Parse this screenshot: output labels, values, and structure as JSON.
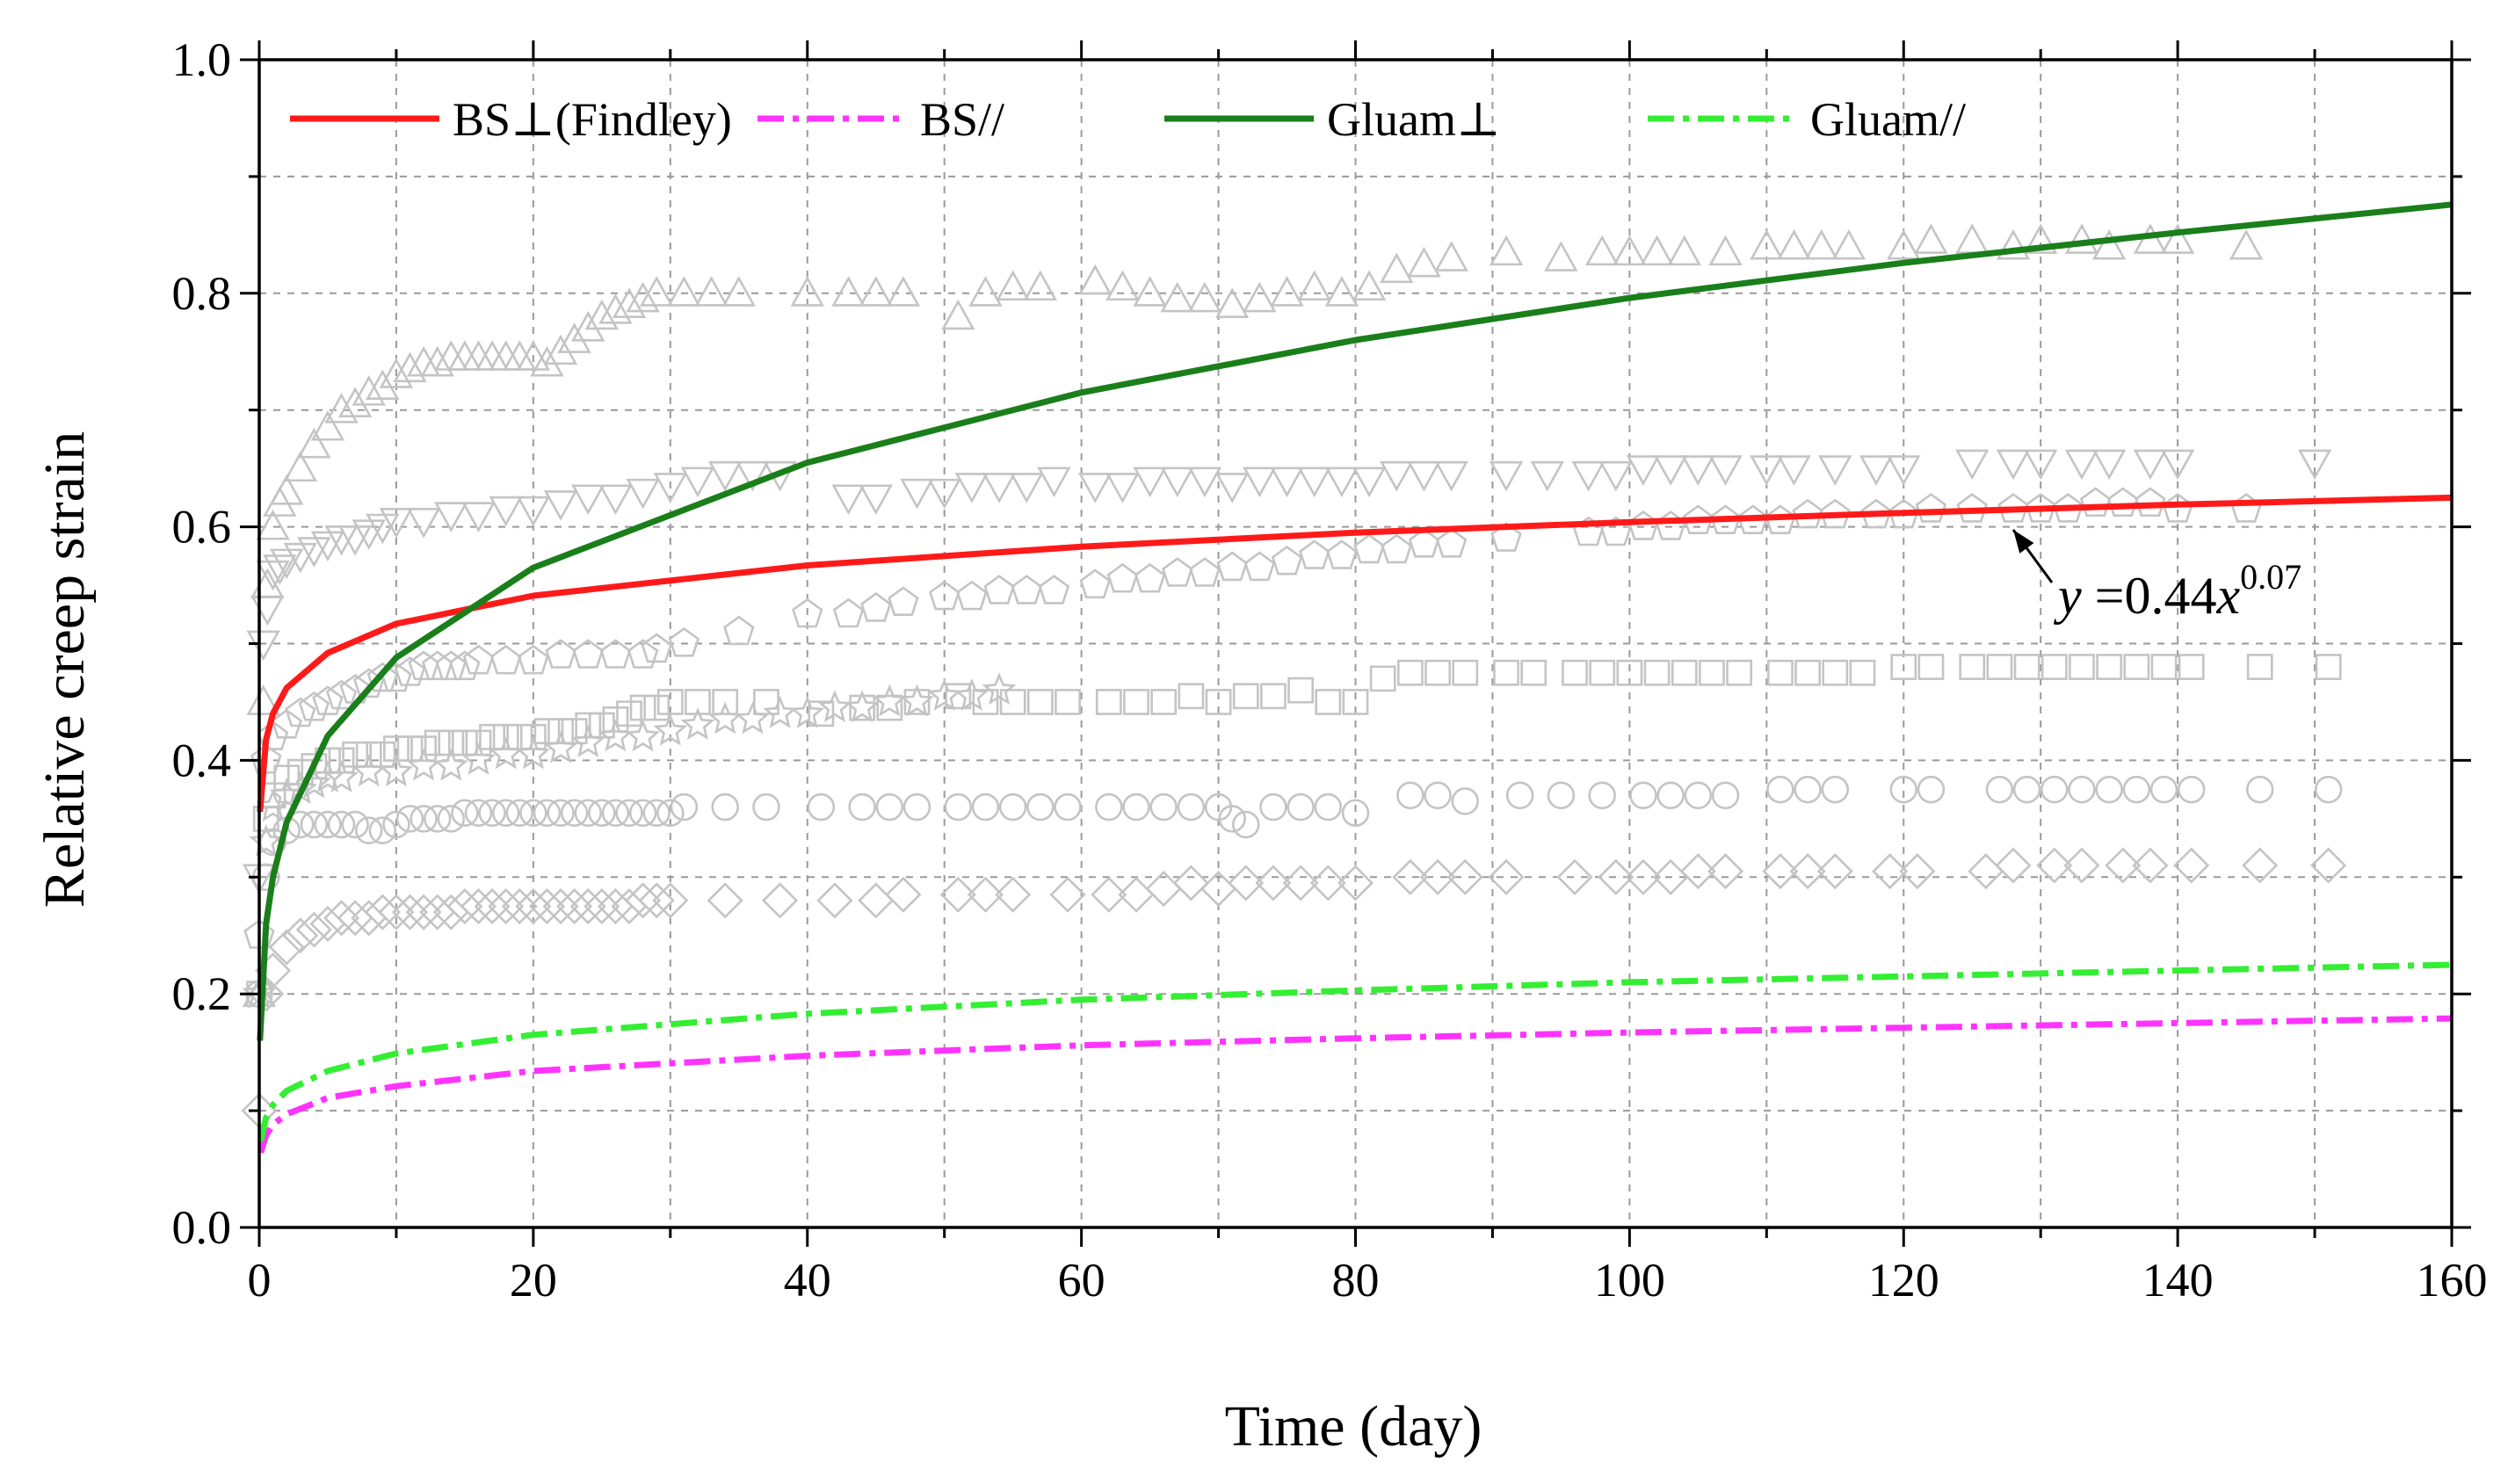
{
  "chart_data": {
    "type": "line",
    "xlabel": "Time (day)",
    "ylabel": "Relative creep strain",
    "xlim": [
      0,
      160
    ],
    "ylim": [
      0,
      1.0
    ],
    "x_ticks": [
      0,
      20,
      40,
      60,
      80,
      100,
      120,
      140,
      160
    ],
    "x_tick_labels": [
      "0",
      "20",
      "40",
      "60",
      "80",
      "100",
      "120",
      "140",
      "160"
    ],
    "y_ticks": [
      0,
      0.2,
      0.4,
      0.6,
      0.8,
      1.0
    ],
    "y_tick_labels": [
      "0.0",
      "0.2",
      "0.4",
      "0.6",
      "0.8",
      "1.0"
    ],
    "grid": true,
    "legend_position": "top",
    "series": [
      {
        "name": "BS⊥(Findley)",
        "label_main": "BS⊥",
        "label_rest": "(Findley)",
        "color": "#ff1a1a",
        "dash": "solid",
        "a": 0.44,
        "b": 0.07,
        "x": [
          0.05,
          0.5,
          1,
          2,
          5,
          10,
          20,
          40,
          60,
          80,
          100,
          120,
          140,
          160
        ],
        "values": [
          0.356,
          0.418,
          0.44,
          0.462,
          0.492,
          0.517,
          0.541,
          0.567,
          0.583,
          0.595,
          0.604,
          0.612,
          0.619,
          0.625
        ]
      },
      {
        "name": "BS//",
        "color": "#ff33ff",
        "dash": "dashdot",
        "a": 0.088,
        "b": 0.14,
        "x": [
          0.1,
          0.5,
          1,
          2,
          5,
          10,
          20,
          40,
          60,
          80,
          100,
          120,
          140,
          160
        ],
        "values": [
          0.064,
          0.079,
          0.088,
          0.097,
          0.111,
          0.121,
          0.134,
          0.147,
          0.156,
          0.162,
          0.167,
          0.171,
          0.175,
          0.179
        ]
      },
      {
        "name": "Gluam⊥",
        "label_main": "Gluam⊥",
        "color": "#1a7f1a",
        "dash": "solid",
        "a": 0.3,
        "b": 0.21,
        "x": [
          0.05,
          0.5,
          1,
          2,
          5,
          10,
          20,
          40,
          60,
          80,
          100,
          120,
          140,
          160
        ],
        "values": [
          0.16,
          0.26,
          0.3,
          0.347,
          0.421,
          0.488,
          0.565,
          0.655,
          0.715,
          0.76,
          0.796,
          0.826,
          0.852,
          0.876
        ]
      },
      {
        "name": "Gluam//",
        "color": "#33ee33",
        "dash": "dashdot",
        "a": 0.105,
        "b": 0.15,
        "x": [
          0.1,
          0.5,
          1,
          2,
          5,
          10,
          20,
          40,
          60,
          80,
          100,
          120,
          140,
          160
        ],
        "values": [
          0.074,
          0.094,
          0.105,
          0.117,
          0.134,
          0.149,
          0.165,
          0.183,
          0.195,
          0.203,
          0.21,
          0.215,
          0.22,
          0.225
        ]
      }
    ],
    "scatter_groups": [
      {
        "shape": "triangle-up",
        "x": [
          0,
          0.3,
          0.6,
          1,
          1.5,
          2,
          3,
          4,
          5,
          6,
          7,
          8,
          9,
          10,
          11,
          12,
          13,
          14,
          15,
          16,
          17,
          18,
          19,
          20,
          21,
          22,
          23,
          24,
          25,
          26,
          27,
          28,
          29,
          31,
          33,
          35,
          40,
          43,
          45,
          47,
          51,
          53,
          55,
          57,
          61,
          63,
          65,
          67,
          69,
          71,
          73,
          75,
          77,
          79,
          81,
          83,
          85,
          87,
          91,
          95,
          98,
          100,
          102,
          104,
          107,
          110,
          112,
          114,
          116,
          120,
          122,
          125,
          128,
          130,
          133,
          135,
          138,
          140,
          145
        ],
        "y": [
          0.2,
          0.45,
          0.55,
          0.6,
          0.62,
          0.63,
          0.65,
          0.67,
          0.685,
          0.7,
          0.705,
          0.715,
          0.72,
          0.73,
          0.735,
          0.74,
          0.74,
          0.745,
          0.745,
          0.745,
          0.745,
          0.745,
          0.745,
          0.745,
          0.74,
          0.75,
          0.76,
          0.77,
          0.78,
          0.785,
          0.79,
          0.795,
          0.8,
          0.8,
          0.8,
          0.8,
          0.8,
          0.8,
          0.8,
          0.8,
          0.78,
          0.8,
          0.805,
          0.805,
          0.81,
          0.805,
          0.8,
          0.795,
          0.795,
          0.79,
          0.795,
          0.8,
          0.805,
          0.8,
          0.805,
          0.82,
          0.825,
          0.83,
          0.835,
          0.83,
          0.835,
          0.835,
          0.835,
          0.835,
          0.835,
          0.84,
          0.84,
          0.84,
          0.84,
          0.84,
          0.845,
          0.845,
          0.84,
          0.845,
          0.845,
          0.84,
          0.845,
          0.845,
          0.84
        ]
      },
      {
        "shape": "triangle-down",
        "x": [
          0,
          0.3,
          0.6,
          1,
          1.5,
          2,
          3,
          4,
          5,
          6,
          7,
          8,
          9,
          10,
          12,
          14,
          16,
          18,
          20,
          22,
          24,
          26,
          28,
          30,
          32,
          34,
          36,
          38,
          43,
          45,
          48,
          50,
          52,
          54,
          56,
          58,
          61,
          63,
          65,
          67,
          69,
          71,
          73,
          75,
          77,
          79,
          81,
          83,
          85,
          87,
          91,
          94,
          97,
          99,
          101,
          103,
          105,
          107,
          110,
          112,
          115,
          118,
          120,
          125,
          128,
          130,
          133,
          135,
          138,
          140,
          150
        ],
        "y": [
          0.3,
          0.5,
          0.53,
          0.56,
          0.565,
          0.57,
          0.575,
          0.58,
          0.585,
          0.59,
          0.59,
          0.595,
          0.6,
          0.605,
          0.605,
          0.61,
          0.61,
          0.615,
          0.615,
          0.62,
          0.625,
          0.625,
          0.63,
          0.635,
          0.64,
          0.645,
          0.645,
          0.645,
          0.625,
          0.625,
          0.63,
          0.63,
          0.635,
          0.635,
          0.635,
          0.64,
          0.635,
          0.635,
          0.64,
          0.64,
          0.64,
          0.635,
          0.64,
          0.64,
          0.64,
          0.64,
          0.64,
          0.645,
          0.645,
          0.645,
          0.645,
          0.645,
          0.645,
          0.645,
          0.65,
          0.65,
          0.65,
          0.65,
          0.65,
          0.65,
          0.65,
          0.65,
          0.65,
          0.655,
          0.655,
          0.655,
          0.655,
          0.655,
          0.655,
          0.655,
          0.655
        ]
      },
      {
        "shape": "pentagon",
        "x": [
          0,
          0.5,
          1,
          2,
          3,
          4,
          5,
          6,
          7,
          8,
          9,
          10,
          11,
          12,
          13,
          14,
          15,
          16,
          18,
          20,
          22,
          24,
          26,
          28,
          29,
          31,
          35,
          40,
          43,
          45,
          47,
          50,
          52,
          54,
          56,
          58,
          61,
          63,
          65,
          67,
          69,
          71,
          73,
          75,
          77,
          79,
          81,
          83,
          85,
          87,
          91,
          97,
          99,
          101,
          103,
          105,
          107,
          109,
          111,
          113,
          115,
          118,
          120,
          122,
          125,
          128,
          130,
          132,
          134,
          136,
          138,
          140,
          145
        ],
        "y": [
          0.25,
          0.4,
          0.42,
          0.43,
          0.44,
          0.445,
          0.45,
          0.455,
          0.46,
          0.465,
          0.47,
          0.47,
          0.475,
          0.48,
          0.48,
          0.48,
          0.48,
          0.485,
          0.485,
          0.485,
          0.49,
          0.49,
          0.49,
          0.49,
          0.495,
          0.5,
          0.51,
          0.525,
          0.525,
          0.53,
          0.535,
          0.54,
          0.54,
          0.545,
          0.545,
          0.545,
          0.55,
          0.555,
          0.555,
          0.56,
          0.56,
          0.565,
          0.565,
          0.57,
          0.575,
          0.575,
          0.58,
          0.58,
          0.585,
          0.585,
          0.59,
          0.595,
          0.595,
          0.6,
          0.6,
          0.605,
          0.605,
          0.605,
          0.605,
          0.61,
          0.61,
          0.61,
          0.61,
          0.615,
          0.615,
          0.615,
          0.615,
          0.615,
          0.62,
          0.62,
          0.62,
          0.615,
          0.615
        ]
      },
      {
        "shape": "square",
        "x": [
          0,
          0.5,
          1,
          2,
          3,
          4,
          5,
          6,
          7,
          8,
          9,
          10,
          11,
          12,
          13,
          14,
          15,
          16,
          17,
          18,
          19,
          20,
          21,
          22,
          23,
          24,
          25,
          26,
          27,
          28,
          29,
          30,
          32,
          34,
          37,
          41,
          44,
          46,
          48,
          51,
          53,
          55,
          57,
          59,
          62,
          64,
          66,
          68,
          70,
          72,
          74,
          76,
          78,
          80,
          82,
          84,
          86,
          88,
          91,
          93,
          96,
          98,
          100,
          102,
          104,
          106,
          108,
          111,
          113,
          115,
          117,
          120,
          122,
          125,
          127,
          129,
          131,
          133,
          135,
          137,
          139,
          141,
          146,
          151
        ],
        "y": [
          0.2,
          0.35,
          0.37,
          0.385,
          0.39,
          0.395,
          0.4,
          0.4,
          0.405,
          0.405,
          0.405,
          0.41,
          0.41,
          0.41,
          0.415,
          0.415,
          0.415,
          0.415,
          0.42,
          0.42,
          0.42,
          0.42,
          0.425,
          0.425,
          0.425,
          0.43,
          0.43,
          0.435,
          0.44,
          0.445,
          0.445,
          0.45,
          0.45,
          0.45,
          0.45,
          0.44,
          0.445,
          0.445,
          0.45,
          0.455,
          0.45,
          0.45,
          0.45,
          0.45,
          0.45,
          0.45,
          0.45,
          0.455,
          0.45,
          0.455,
          0.455,
          0.46,
          0.45,
          0.45,
          0.47,
          0.475,
          0.475,
          0.475,
          0.475,
          0.475,
          0.475,
          0.475,
          0.475,
          0.475,
          0.475,
          0.475,
          0.475,
          0.475,
          0.475,
          0.475,
          0.475,
          0.48,
          0.48,
          0.48,
          0.48,
          0.48,
          0.48,
          0.48,
          0.48,
          0.48,
          0.48,
          0.48,
          0.48,
          0.48
        ]
      },
      {
        "shape": "star",
        "x": [
          0,
          0.5,
          1,
          2,
          3,
          4,
          5,
          6,
          8,
          10,
          12,
          14,
          16,
          18,
          20,
          22,
          24,
          26,
          28,
          30,
          32,
          34,
          36,
          38,
          40,
          42,
          44,
          46,
          48,
          50,
          52,
          54
        ],
        "y": [
          0.2,
          0.33,
          0.36,
          0.37,
          0.375,
          0.38,
          0.385,
          0.385,
          0.39,
          0.39,
          0.395,
          0.395,
          0.4,
          0.405,
          0.405,
          0.41,
          0.415,
          0.42,
          0.42,
          0.425,
          0.43,
          0.435,
          0.435,
          0.44,
          0.44,
          0.445,
          0.445,
          0.45,
          0.45,
          0.455,
          0.455,
          0.46
        ]
      },
      {
        "shape": "circle",
        "x": [
          0,
          0.5,
          1,
          2,
          3,
          4,
          5,
          6,
          7,
          8,
          9,
          10,
          11,
          12,
          13,
          14,
          15,
          16,
          17,
          18,
          19,
          20,
          21,
          22,
          23,
          24,
          25,
          26,
          27,
          28,
          29,
          30,
          31,
          34,
          37,
          41,
          44,
          46,
          48,
          51,
          53,
          55,
          57,
          59,
          62,
          64,
          66,
          68,
          70,
          71,
          72,
          74,
          76,
          78,
          80,
          84,
          86,
          88,
          92,
          95,
          98,
          101,
          103,
          105,
          107,
          111,
          113,
          115,
          120,
          122,
          127,
          129,
          131,
          133,
          135,
          137,
          139,
          141,
          146,
          151
        ],
        "y": [
          0.2,
          0.3,
          0.33,
          0.34,
          0.345,
          0.345,
          0.345,
          0.345,
          0.345,
          0.34,
          0.34,
          0.345,
          0.35,
          0.35,
          0.35,
          0.35,
          0.355,
          0.355,
          0.355,
          0.355,
          0.355,
          0.355,
          0.355,
          0.355,
          0.355,
          0.355,
          0.355,
          0.355,
          0.355,
          0.355,
          0.355,
          0.355,
          0.36,
          0.36,
          0.36,
          0.36,
          0.36,
          0.36,
          0.36,
          0.36,
          0.36,
          0.36,
          0.36,
          0.36,
          0.36,
          0.36,
          0.36,
          0.36,
          0.36,
          0.35,
          0.345,
          0.36,
          0.36,
          0.36,
          0.355,
          0.37,
          0.37,
          0.365,
          0.37,
          0.37,
          0.37,
          0.37,
          0.37,
          0.37,
          0.37,
          0.375,
          0.375,
          0.375,
          0.375,
          0.375,
          0.375,
          0.375,
          0.375,
          0.375,
          0.375,
          0.375,
          0.375,
          0.375,
          0.375,
          0.375
        ]
      },
      {
        "shape": "diamond",
        "x": [
          0,
          0.5,
          1,
          2,
          3,
          4,
          5,
          6,
          7,
          8,
          9,
          10,
          11,
          12,
          13,
          14,
          15,
          16,
          17,
          18,
          19,
          20,
          21,
          22,
          23,
          24,
          25,
          26,
          27,
          28,
          29,
          30,
          34,
          38,
          42,
          45,
          47,
          51,
          53,
          55,
          59,
          62,
          64,
          66,
          68,
          70,
          72,
          74,
          76,
          78,
          80,
          84,
          86,
          88,
          91,
          96,
          99,
          101,
          103,
          105,
          107,
          111,
          113,
          115,
          119,
          121,
          126,
          128,
          131,
          133,
          136,
          138,
          141,
          146,
          151
        ],
        "y": [
          0.1,
          0.2,
          0.22,
          0.24,
          0.25,
          0.255,
          0.26,
          0.265,
          0.265,
          0.265,
          0.27,
          0.27,
          0.27,
          0.27,
          0.27,
          0.27,
          0.275,
          0.275,
          0.275,
          0.275,
          0.275,
          0.275,
          0.275,
          0.275,
          0.275,
          0.275,
          0.275,
          0.275,
          0.275,
          0.28,
          0.28,
          0.28,
          0.28,
          0.28,
          0.28,
          0.28,
          0.285,
          0.285,
          0.285,
          0.285,
          0.285,
          0.285,
          0.285,
          0.29,
          0.295,
          0.29,
          0.295,
          0.295,
          0.295,
          0.295,
          0.295,
          0.3,
          0.3,
          0.3,
          0.3,
          0.3,
          0.3,
          0.3,
          0.3,
          0.305,
          0.305,
          0.305,
          0.305,
          0.305,
          0.305,
          0.305,
          0.305,
          0.31,
          0.31,
          0.31,
          0.31,
          0.31,
          0.31,
          0.31,
          0.31
        ]
      }
    ],
    "annotation": {
      "lhs": "y",
      "eq": " =0.44",
      "var": "x",
      "exponent": "0.07",
      "target_x": 128,
      "target_y": 0.605
    }
  }
}
